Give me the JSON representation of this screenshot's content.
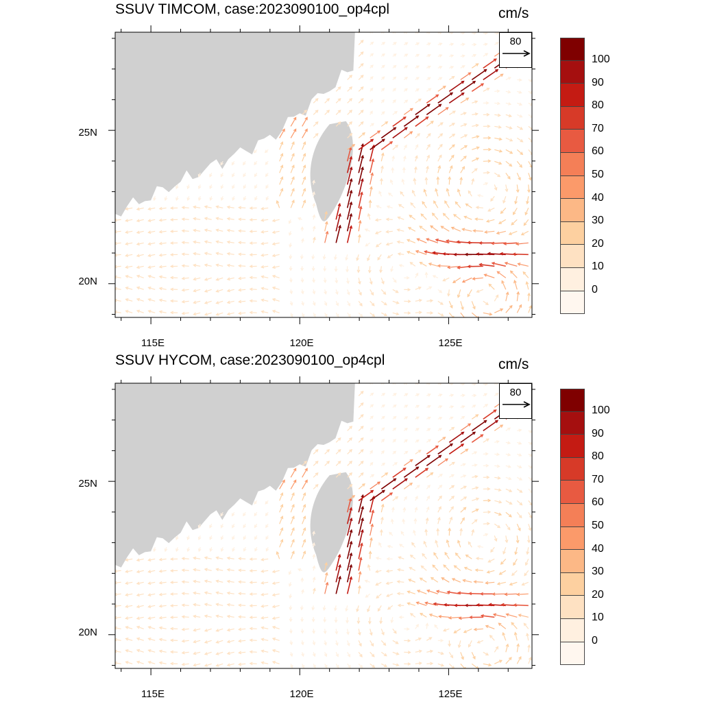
{
  "panels": [
    {
      "title": "SSUV TIMCOM, case:2023090100_op4cpl",
      "units": "cm/s",
      "reference_vector": "80",
      "model_key": "timcom"
    },
    {
      "title": "SSUV HYCOM, case:2023090100_op4cpl",
      "units": "cm/s",
      "reference_vector": "80",
      "model_key": "hycom"
    }
  ],
  "axes": {
    "lat_labels": [
      "25N",
      "20N"
    ],
    "lat_values": [
      25,
      20
    ],
    "lon_labels": [
      "115E",
      "120E",
      "125E"
    ],
    "lon_values": [
      115,
      120,
      125
    ],
    "lon_range": [
      113.8,
      127.8
    ],
    "lat_range": [
      18.9,
      28.2
    ]
  },
  "colorbar": {
    "labels": [
      "100",
      "90",
      "80",
      "70",
      "60",
      "50",
      "40",
      "30",
      "20",
      "10",
      "0"
    ],
    "colors": [
      "#7f0000",
      "#a50f0f",
      "#c41b13",
      "#d73a28",
      "#e85a41",
      "#f47f57",
      "#fb9a6a",
      "#fcb886",
      "#fdd0a0",
      "#fee1c2",
      "#fff0e0",
      "#fff7ef"
    ]
  },
  "colors": {
    "land": "#d0d0d0",
    "ocean": "#ffffff",
    "frame": "#000000"
  }
}
